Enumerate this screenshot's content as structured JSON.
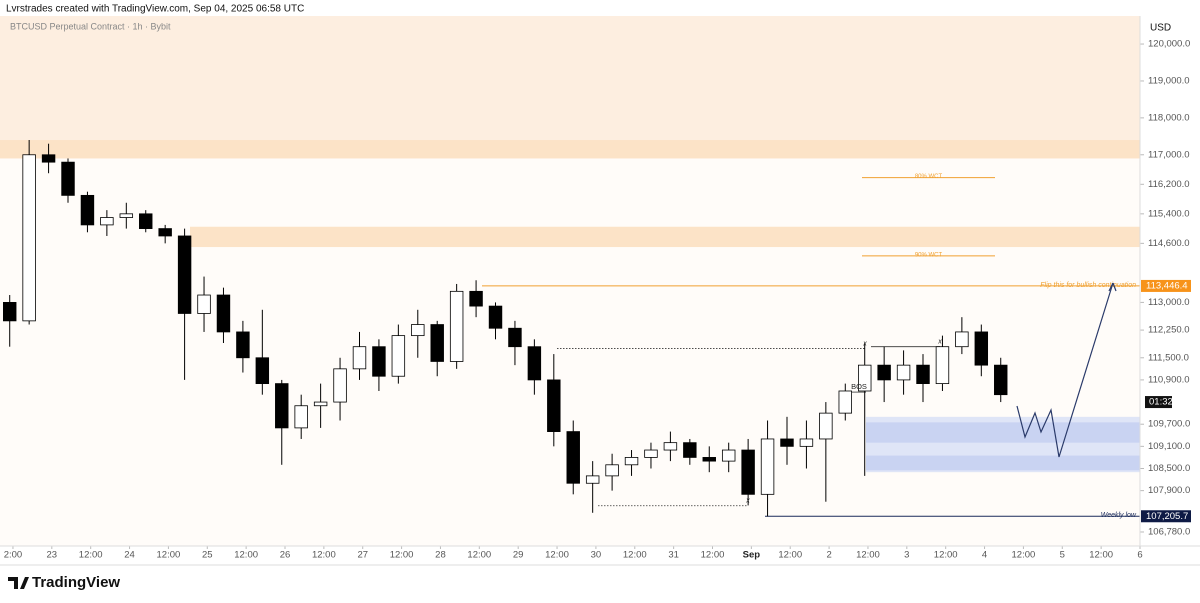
{
  "header": {
    "text": "Lvrstrades created with TradingView.com, Sep 04, 2025 06:58 UTC"
  },
  "chart_data": {
    "type": "candlestick",
    "title": "BTCUSD Perpetual Contract · 1h · Bybit",
    "y_axis_label": "USD",
    "x": [
      8,
      14,
      20,
      26,
      32,
      38,
      44,
      50,
      56,
      62,
      68,
      74,
      80,
      86,
      92,
      98,
      104,
      110,
      116,
      122,
      128,
      134,
      140,
      146,
      152,
      158,
      164,
      170,
      176,
      182,
      188,
      194,
      200,
      206,
      212,
      218,
      224,
      230,
      236,
      242,
      248,
      254,
      260,
      266,
      272,
      278,
      284,
      290,
      296,
      302,
      308,
      314
    ],
    "open": [
      113000,
      112500,
      117000,
      116800,
      115900,
      115100,
      115300,
      115400,
      115000,
      114800,
      112700,
      113200,
      112200,
      111500,
      110800,
      109600,
      110200,
      110300,
      111200,
      111800,
      111000,
      112100,
      112400,
      111400,
      113300,
      112900,
      112300,
      111800,
      110900,
      109500,
      108100,
      108300,
      108600,
      108800,
      109000,
      109200,
      108800,
      108700,
      109000,
      107800,
      109300,
      109100,
      109300,
      110000,
      110600,
      111300,
      110900,
      111300,
      110800,
      111800,
      112200,
      111300
    ],
    "high": [
      113200,
      117400,
      117300,
      116900,
      116000,
      115500,
      115700,
      115500,
      115100,
      115000,
      113700,
      113400,
      112500,
      112800,
      110900,
      110500,
      110800,
      111500,
      112200,
      112000,
      112400,
      112800,
      112500,
      113500,
      113600,
      113000,
      112500,
      112000,
      111600,
      109800,
      108700,
      108900,
      109000,
      109200,
      109500,
      109300,
      109100,
      109200,
      109300,
      109800,
      109900,
      109800,
      110300,
      110800,
      111900,
      111800,
      111700,
      111600,
      112100,
      112600,
      112400,
      111500
    ],
    "low": [
      111800,
      112400,
      116500,
      115700,
      114900,
      114800,
      115000,
      114900,
      114600,
      110900,
      112200,
      111900,
      111100,
      110500,
      108600,
      109300,
      109600,
      109800,
      110900,
      110600,
      110800,
      111500,
      111000,
      111200,
      112600,
      112000,
      111300,
      110500,
      109100,
      107800,
      107300,
      107900,
      108300,
      108500,
      108700,
      108600,
      108400,
      108400,
      107500,
      107200,
      108600,
      108500,
      107600,
      109800,
      108300,
      110300,
      110500,
      110300,
      110600,
      111600,
      111000,
      110300
    ],
    "close": [
      112500,
      117000,
      116800,
      115900,
      115100,
      115300,
      115400,
      115000,
      114800,
      112700,
      113200,
      112200,
      111500,
      110800,
      109600,
      110200,
      110300,
      111200,
      111800,
      111000,
      112100,
      112400,
      111400,
      113300,
      112900,
      112300,
      111800,
      110900,
      109500,
      108100,
      108300,
      108600,
      108800,
      109000,
      109200,
      108800,
      108700,
      109000,
      107800,
      109300,
      109100,
      109300,
      110000,
      110600,
      111300,
      110900,
      111300,
      110800,
      111800,
      112200,
      111300,
      110500
    ],
    "up_color": "#ffffff",
    "down_color": "#000000",
    "xlim": [
      8,
      360
    ],
    "ylim": [
      106400,
      120760
    ],
    "xticks": [
      {
        "value": 12,
        "label": "2:00"
      },
      {
        "value": 24,
        "label": "23"
      },
      {
        "value": 36,
        "label": "12:00"
      },
      {
        "value": 48,
        "label": "24"
      },
      {
        "value": 60,
        "label": "12:00"
      },
      {
        "value": 72,
        "label": "25"
      },
      {
        "value": 84,
        "label": "12:00"
      },
      {
        "value": 96,
        "label": "26"
      },
      {
        "value": 108,
        "label": "12:00"
      },
      {
        "value": 120,
        "label": "27"
      },
      {
        "value": 132,
        "label": "12:00"
      },
      {
        "value": 144,
        "label": "28"
      },
      {
        "value": 156,
        "label": "12:00"
      },
      {
        "value": 168,
        "label": "29"
      },
      {
        "value": 180,
        "label": "12:00"
      },
      {
        "value": 192,
        "label": "30"
      },
      {
        "value": 204,
        "label": "12:00"
      },
      {
        "value": 216,
        "label": "31"
      },
      {
        "value": 228,
        "label": "12:00"
      },
      {
        "value": 240,
        "label": "Sep"
      },
      {
        "value": 252,
        "label": "12:00"
      },
      {
        "value": 264,
        "label": "2"
      },
      {
        "value": 276,
        "label": "12:00"
      },
      {
        "value": 288,
        "label": "3"
      },
      {
        "value": 300,
        "label": "12:00"
      },
      {
        "value": 312,
        "label": "4"
      },
      {
        "value": 324,
        "label": "12:00"
      },
      {
        "value": 336,
        "label": "5"
      },
      {
        "value": 348,
        "label": "12:00"
      },
      {
        "value": 360,
        "label": "6"
      }
    ],
    "yticks": [
      {
        "value": 120000,
        "label": "120,000.0"
      },
      {
        "value": 119000,
        "label": "119,000.0"
      },
      {
        "value": 118000,
        "label": "118,000.0"
      },
      {
        "value": 117000,
        "label": "117,000.0"
      },
      {
        "value": 116200,
        "label": "116,200.0"
      },
      {
        "value": 115400,
        "label": "115,400.0"
      },
      {
        "value": 114600,
        "label": "114,600.0"
      },
      {
        "value": 113000,
        "label": "113,000.0"
      },
      {
        "value": 112250,
        "label": "112,250.0"
      },
      {
        "value": 111500,
        "label": "111,500.0"
      },
      {
        "value": 110900,
        "label": "110,900.0"
      },
      {
        "value": 109700,
        "label": "109,700.0"
      },
      {
        "value": 109100,
        "label": "109,100.0"
      },
      {
        "value": 108500,
        "label": "108,500.0"
      },
      {
        "value": 107900,
        "label": "107,900.0"
      },
      {
        "value": 106780,
        "label": "106,780.0"
      }
    ],
    "zones": [
      {
        "low": 117400,
        "high": 120760,
        "color": "#fdeee0"
      },
      {
        "low": 116900,
        "high": 117400,
        "color": "#fce3c7"
      },
      {
        "low": 114500,
        "high": 115050,
        "color": "#fce3c7"
      },
      {
        "low": 108400,
        "high": 109900,
        "color": "#dfe5f7"
      },
      {
        "low": 109200,
        "high": 109750,
        "color": "#c9d3f2"
      },
      {
        "low": 108450,
        "high": 108850,
        "color": "#c9d3f2"
      }
    ],
    "levels": [
      {
        "value": 113446.4,
        "label": "Flip this for bullish continuation",
        "axis_label": "113,446.4",
        "color": "#f0a030",
        "box": "#f7931a"
      },
      {
        "value": 107205.7,
        "label": "Weekly low",
        "axis_label": "107,205.7",
        "color": "#1a2a5a",
        "box": "#0e1a45"
      },
      {
        "value": 116380,
        "label": "80% WCT",
        "color": "#f0a030"
      },
      {
        "value": 114260,
        "label": "90% WCT",
        "color": "#f0a030"
      }
    ],
    "sweeps": [
      {
        "value": 111750,
        "label": "x"
      },
      {
        "value": 107490,
        "label": "x"
      },
      {
        "value": 111800,
        "label": "x"
      },
      {
        "value": 110570,
        "label": "BOS"
      }
    ],
    "countdown": {
      "value": 110300,
      "label": "01:32"
    }
  },
  "footer": {
    "logo": "TradingView"
  }
}
